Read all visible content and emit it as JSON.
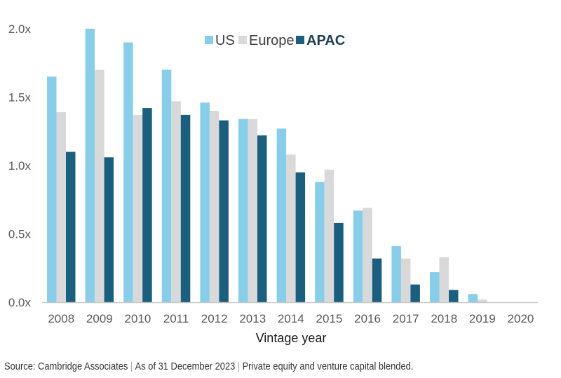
{
  "chart_data": {
    "type": "bar",
    "title": "",
    "xlabel": "Vintage year",
    "ylabel": "",
    "ylim": [
      0,
      2.0
    ],
    "yticks": [
      "0.0x",
      "0.5x",
      "1.0x",
      "1.5x",
      "2.0x"
    ],
    "ytick_values": [
      0,
      0.5,
      1.0,
      1.5,
      2.0
    ],
    "grid": false,
    "legend_position": "top-center",
    "categories": [
      "2008",
      "2009",
      "2010",
      "2011",
      "2012",
      "2013",
      "2014",
      "2015",
      "2016",
      "2017",
      "2018",
      "2019",
      "2020"
    ],
    "series": [
      {
        "name": "US",
        "color": "#87ceeb",
        "bold": false,
        "values": [
          1.65,
          2.0,
          1.9,
          1.7,
          1.46,
          1.34,
          1.27,
          0.88,
          0.67,
          0.41,
          0.22,
          0.06,
          0.0
        ]
      },
      {
        "name": "Europe",
        "color": "#d9d9d9",
        "bold": false,
        "values": [
          1.39,
          1.7,
          1.37,
          1.47,
          1.4,
          1.34,
          1.08,
          0.97,
          0.69,
          0.32,
          0.33,
          0.02,
          0.0
        ]
      },
      {
        "name": "APAC",
        "color": "#1a5f80",
        "bold": true,
        "values": [
          1.1,
          1.06,
          1.42,
          1.37,
          1.33,
          1.22,
          0.95,
          0.58,
          0.32,
          0.13,
          0.09,
          0.0,
          0.0
        ]
      }
    ]
  },
  "footer": {
    "source": "Source: Cambridge Associates",
    "date": "As of 31 December 2023",
    "note": "Private equity and venture capital blended.",
    "separator": "|"
  }
}
